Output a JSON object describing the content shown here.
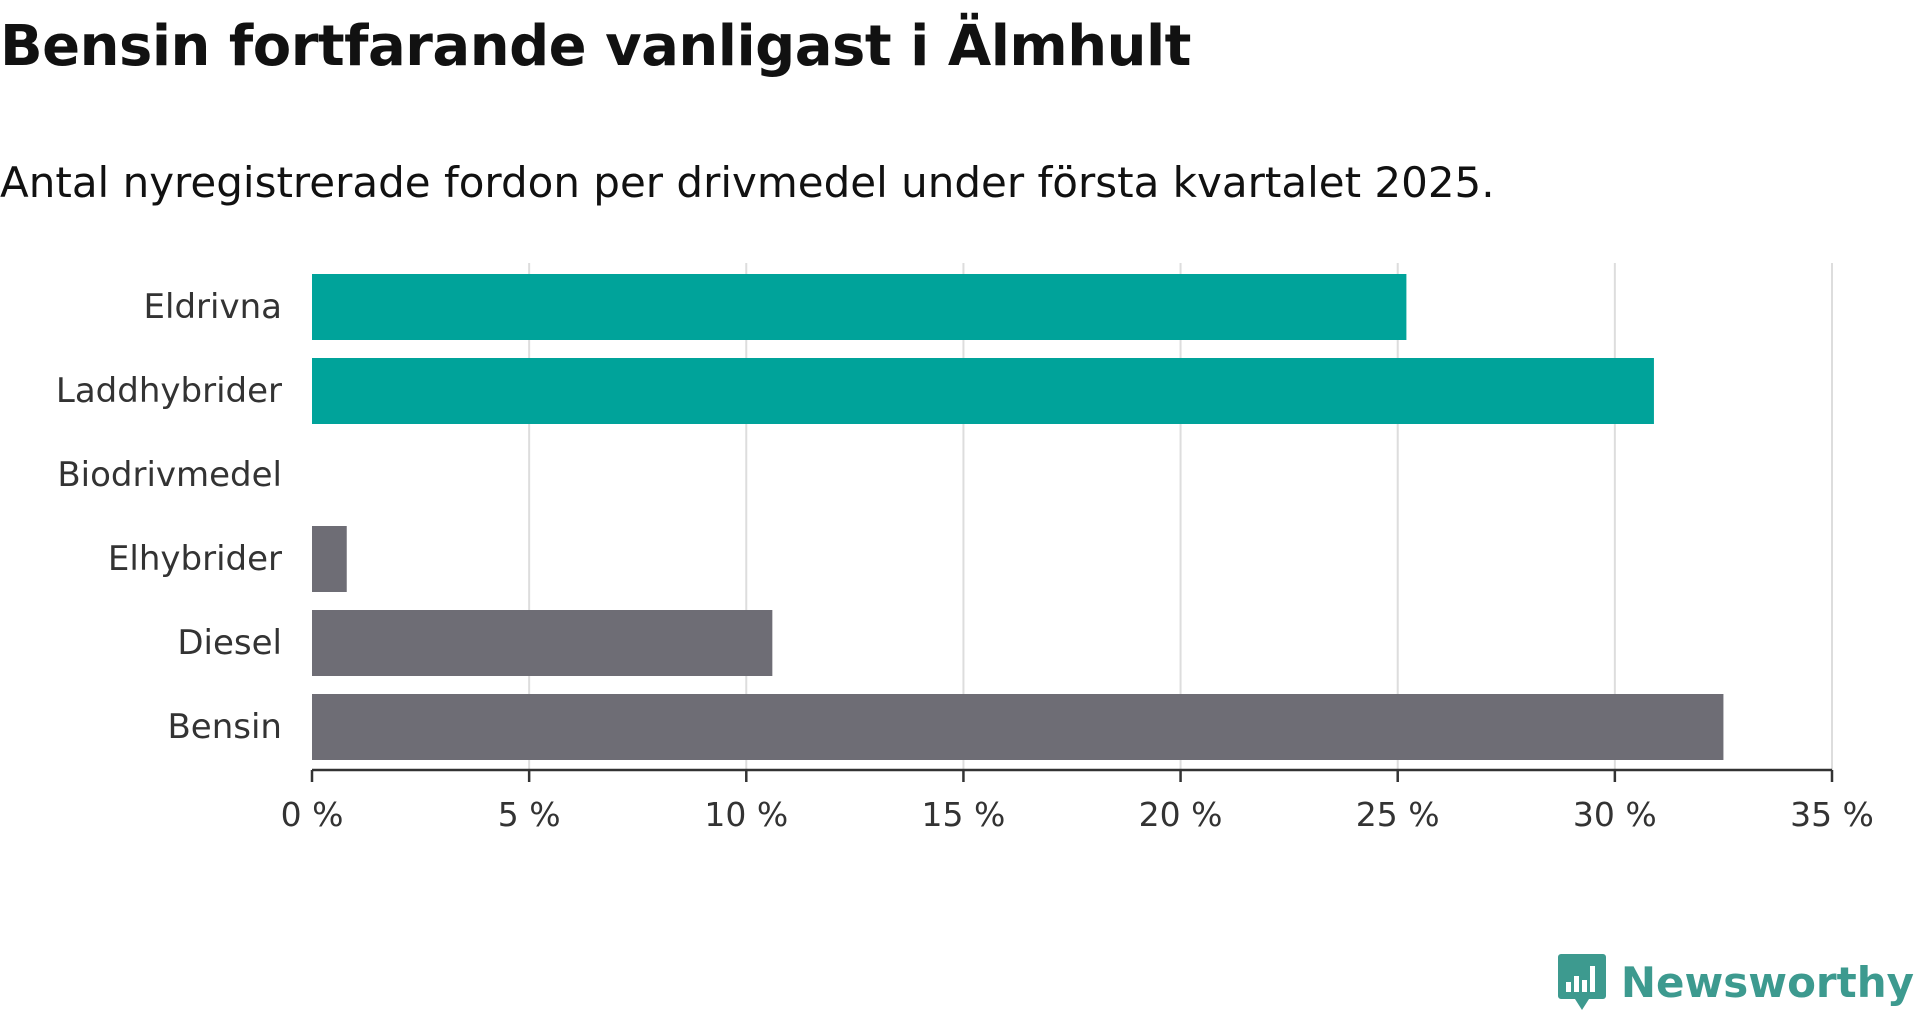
{
  "header": {
    "title": "Bensin fortfarande vanligast i Älmhult",
    "subtitle": "Antal nyregistrerade fordon per drivmedel under första kvartalet 2025."
  },
  "brand": {
    "name": "Newsworthy",
    "icon": "newsworthy-logo-icon",
    "color": "#3d9a8f"
  },
  "colors": {
    "highlight": "#00a39a",
    "default": "#6e6d75",
    "grid": "#dddddd",
    "axis": "#333333"
  },
  "chart_data": {
    "type": "bar",
    "orientation": "horizontal",
    "categories": [
      "Eldrivna",
      "Laddhybrider",
      "Biodrivmedel",
      "Elhybrider",
      "Diesel",
      "Bensin"
    ],
    "values": [
      25.2,
      30.9,
      0,
      0.8,
      10.6,
      32.5
    ],
    "highlight": [
      true,
      true,
      true,
      false,
      false,
      false
    ],
    "xlim": [
      0,
      35
    ],
    "xticks": [
      0,
      5,
      10,
      15,
      20,
      25,
      30,
      35
    ],
    "xtick_labels": [
      "0 %",
      "5 %",
      "10 %",
      "15 %",
      "20 %",
      "25 %",
      "30 %",
      "35 %"
    ],
    "grid": true,
    "title": "",
    "xlabel": "",
    "ylabel": ""
  }
}
